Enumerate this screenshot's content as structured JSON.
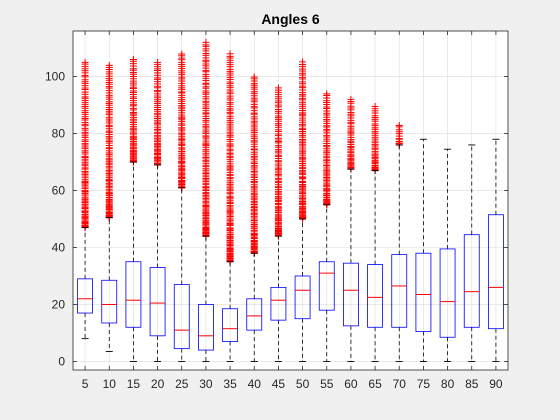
{
  "chart_data": {
    "type": "boxplot",
    "title": "Angles 6",
    "xlabel": "",
    "ylabel": "",
    "categories": [
      "5",
      "10",
      "15",
      "20",
      "25",
      "30",
      "35",
      "40",
      "45",
      "50",
      "55",
      "60",
      "65",
      "70",
      "75",
      "80",
      "85",
      "90"
    ],
    "yticks": [
      0,
      20,
      40,
      60,
      80,
      100
    ],
    "ylim": [
      -3,
      116
    ],
    "grid": true,
    "colors": {
      "box": "#0000ff",
      "median": "#ff0000",
      "whisker": "#000000",
      "outlier": "#ff0000",
      "axes_bg": "#ffffff",
      "figure_bg": "#f0f0f0",
      "grid": "#dcdcdc"
    },
    "boxes": [
      {
        "category": "5",
        "whisker_low": 8,
        "q1": 17,
        "median": 22,
        "q3": 29,
        "whisker_high": 47,
        "outlier_range": [
          47,
          105
        ]
      },
      {
        "category": "10",
        "whisker_low": 3.5,
        "q1": 13.5,
        "median": 20,
        "q3": 28.5,
        "whisker_high": 50.5,
        "outlier_range": [
          50.5,
          104
        ]
      },
      {
        "category": "15",
        "whisker_low": 0,
        "q1": 12,
        "median": 21.5,
        "q3": 35,
        "whisker_high": 70,
        "outlier_range": [
          70,
          106
        ]
      },
      {
        "category": "20",
        "whisker_low": 0,
        "q1": 9,
        "median": 20.5,
        "q3": 33,
        "whisker_high": 69,
        "outlier_range": [
          69,
          105
        ]
      },
      {
        "category": "25",
        "whisker_low": 0,
        "q1": 4.5,
        "median": 11,
        "q3": 27,
        "whisker_high": 61,
        "outlier_range": [
          61,
          108
        ]
      },
      {
        "category": "30",
        "whisker_low": 0,
        "q1": 4,
        "median": 9,
        "q3": 20,
        "whisker_high": 44,
        "outlier_range": [
          44,
          112
        ]
      },
      {
        "category": "35",
        "whisker_low": 0,
        "q1": 7,
        "median": 11.5,
        "q3": 18.5,
        "whisker_high": 35,
        "outlier_range": [
          35,
          108
        ]
      },
      {
        "category": "40",
        "whisker_low": 0,
        "q1": 11,
        "median": 16,
        "q3": 22,
        "whisker_high": 38,
        "outlier_range": [
          38,
          100
        ]
      },
      {
        "category": "45",
        "whisker_low": 0,
        "q1": 14.5,
        "median": 21.5,
        "q3": 26,
        "whisker_high": 44,
        "outlier_range": [
          44,
          96
        ]
      },
      {
        "category": "50",
        "whisker_low": 0,
        "q1": 15,
        "median": 25,
        "q3": 30,
        "whisker_high": 50,
        "outlier_range": [
          50,
          105
        ]
      },
      {
        "category": "55",
        "whisker_low": 0,
        "q1": 18,
        "median": 31,
        "q3": 35,
        "whisker_high": 55,
        "outlier_range": [
          55,
          94
        ]
      },
      {
        "category": "60",
        "whisker_low": 0,
        "q1": 12.5,
        "median": 25,
        "q3": 34.5,
        "whisker_high": 67.5,
        "outlier_range": [
          67.5,
          92
        ]
      },
      {
        "category": "65",
        "whisker_low": 0,
        "q1": 12,
        "median": 22.5,
        "q3": 34,
        "whisker_high": 67,
        "outlier_range": [
          67,
          89.5
        ]
      },
      {
        "category": "70",
        "whisker_low": 0,
        "q1": 12,
        "median": 26.5,
        "q3": 37.5,
        "whisker_high": 76,
        "outlier_range": [
          76,
          83
        ]
      },
      {
        "category": "75",
        "whisker_low": 0,
        "q1": 10.5,
        "median": 23.5,
        "q3": 38,
        "whisker_high": 78,
        "outlier_range": []
      },
      {
        "category": "80",
        "whisker_low": 0,
        "q1": 8.5,
        "median": 21,
        "q3": 39.5,
        "whisker_high": 74.5,
        "outlier_range": []
      },
      {
        "category": "85",
        "whisker_low": 0,
        "q1": 12,
        "median": 24.5,
        "q3": 44.5,
        "whisker_high": 76,
        "outlier_range": []
      },
      {
        "category": "90",
        "whisker_low": 0,
        "q1": 11.5,
        "median": 26,
        "q3": 51.5,
        "whisker_high": 78,
        "outlier_range": []
      }
    ]
  }
}
